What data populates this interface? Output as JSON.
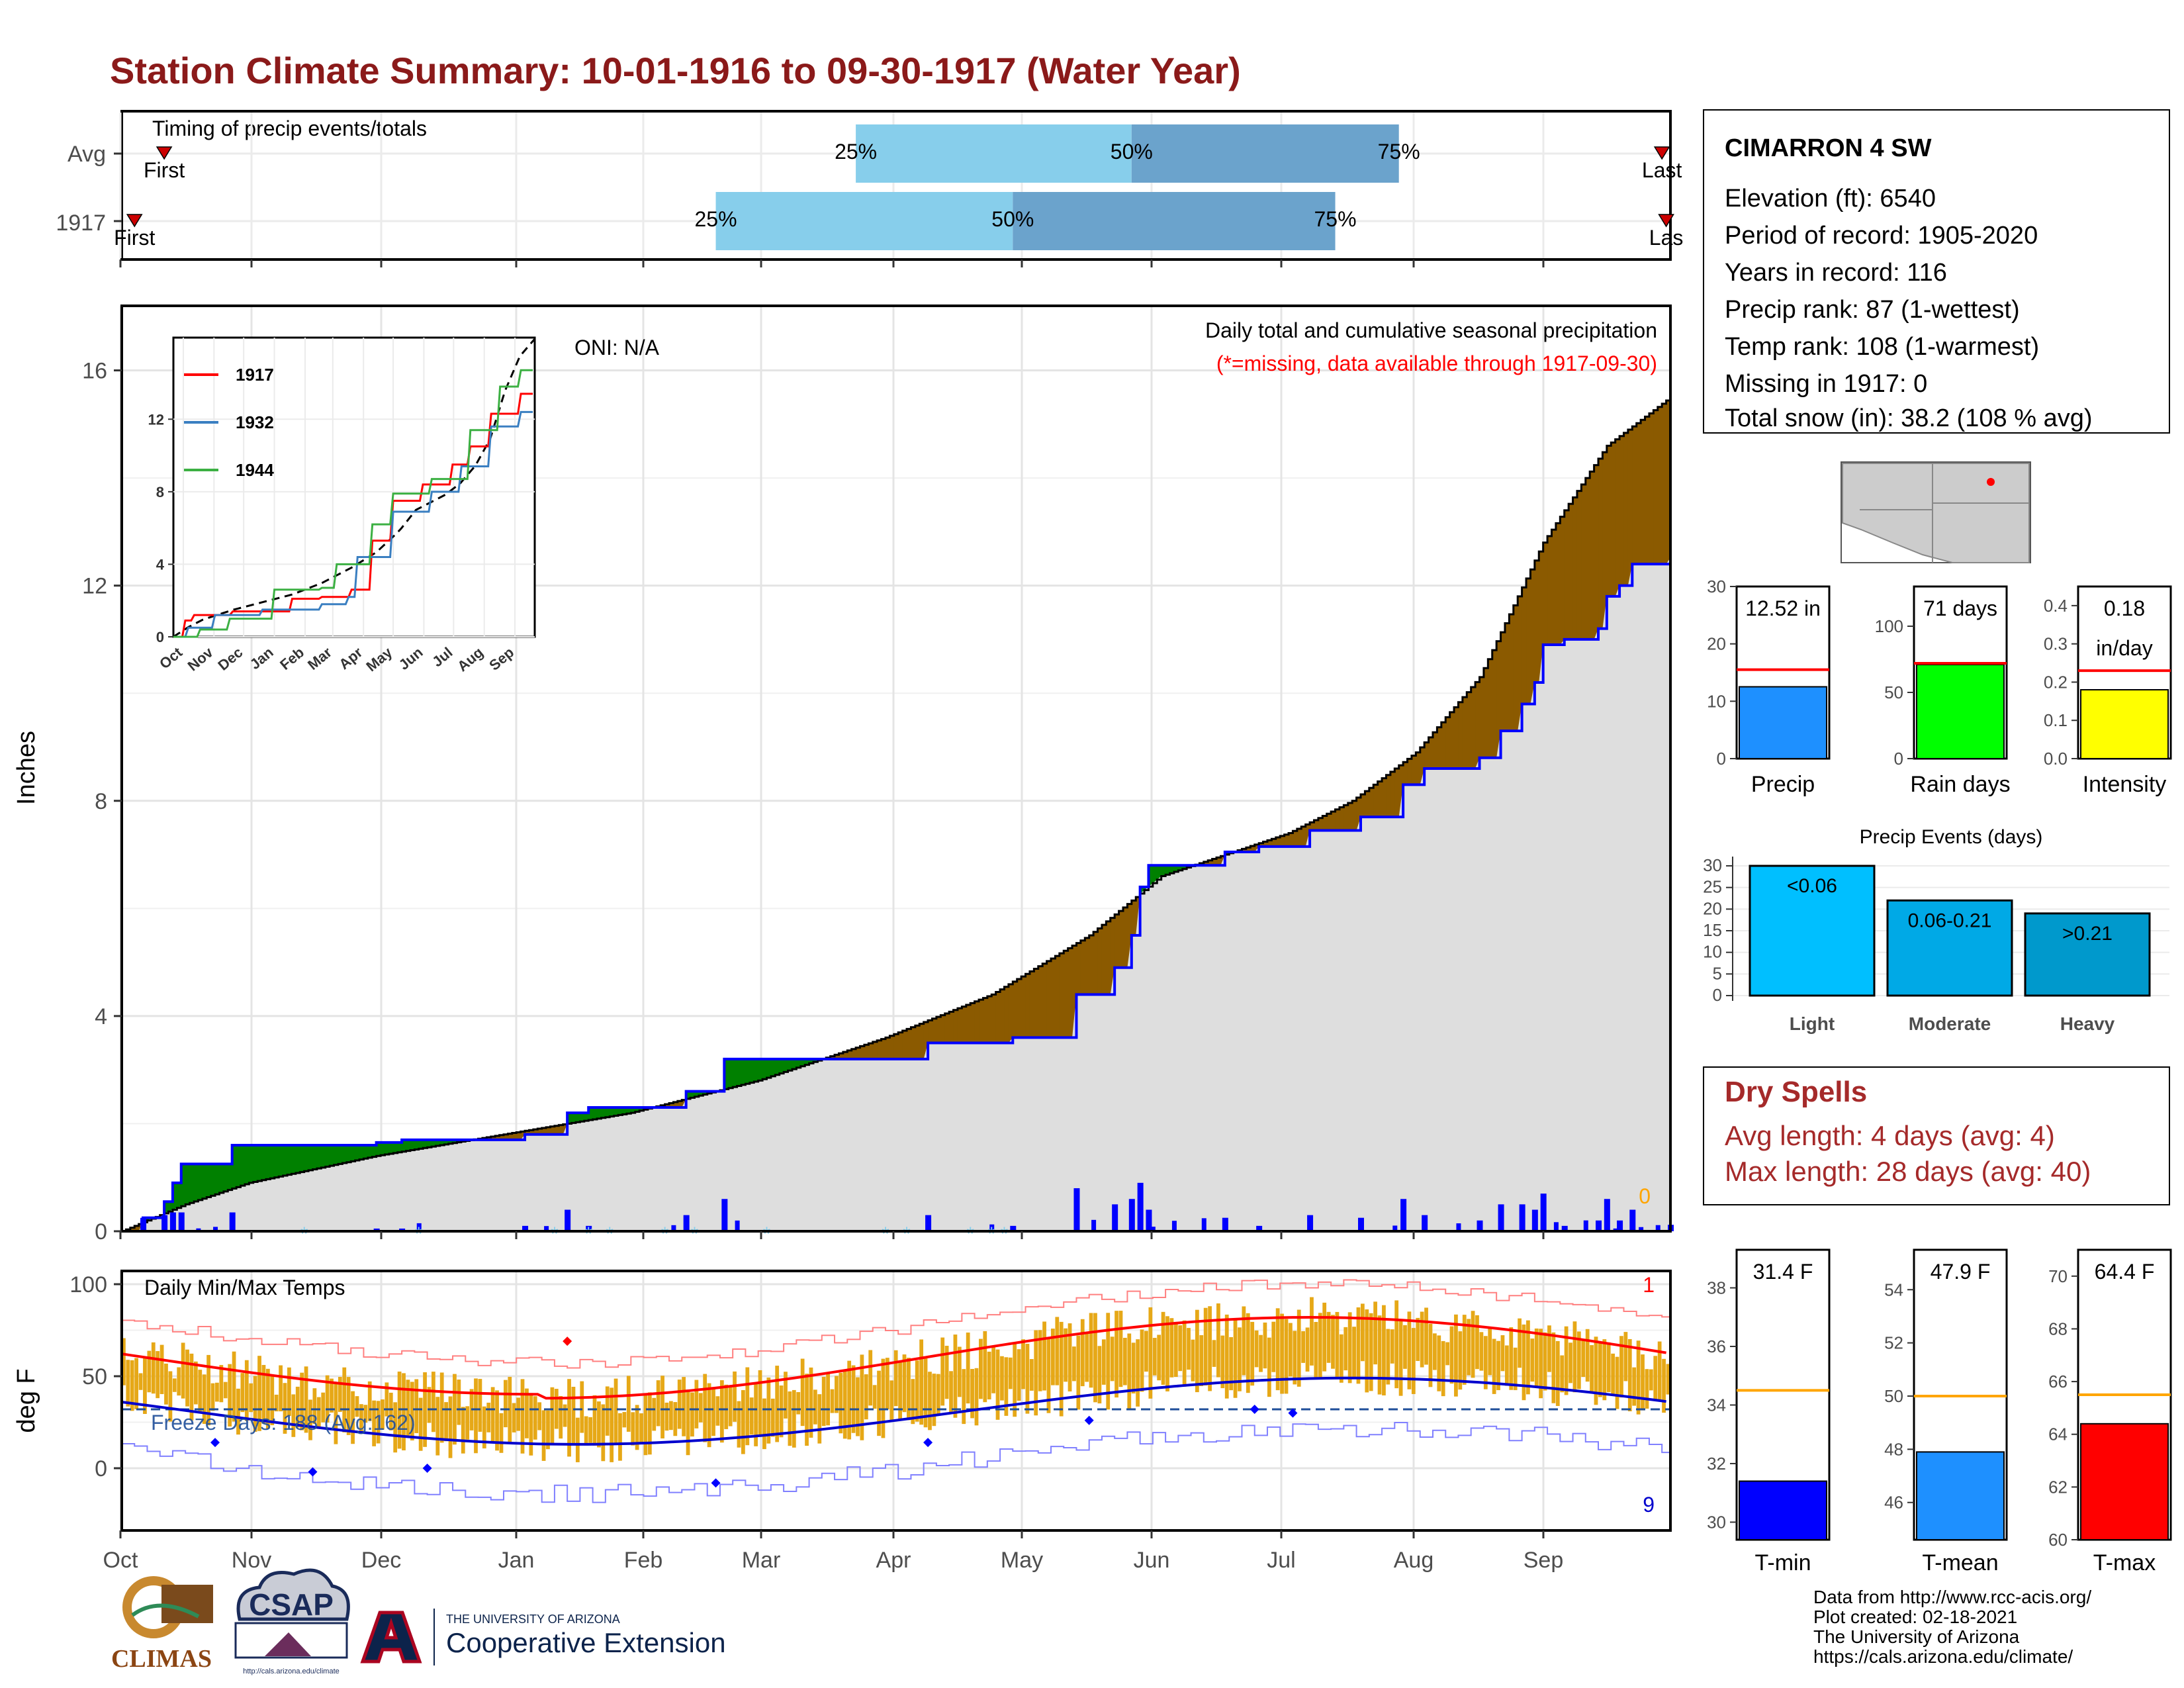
{
  "title": "Station Climate Summary: 10-01-1916 to 09-30-1917 (Water Year)",
  "colors": {
    "title": "#8b1a1a",
    "current": "#000000",
    "avg_line": "#0000ff",
    "surplus": "#008000",
    "deficit": "#8b5a00",
    "fill_avg": "#dedede",
    "daily_bar": "#0000ff",
    "q1": "#87ceeb",
    "q2": "#6ba3cc",
    "temp_bar": "#e6a817",
    "tmax_avg": "#ff0000",
    "tmin_avg": "#0000cd",
    "dry_spells": "#a52a2a"
  },
  "timing": {
    "label": "Timing of precip events/totals",
    "rows": [
      {
        "name": "Avg",
        "first_label": "First",
        "last_label": "Last",
        "first_day": 10,
        "last_day": 363,
        "q25": 173,
        "q50": 238,
        "q75": 301
      },
      {
        "name": "1917",
        "first_label": "First",
        "last_label": "Las",
        "first_day": 3,
        "last_day": 364,
        "q25": 140,
        "q50": 210,
        "q75": 286
      }
    ],
    "pct_labels": [
      "25%",
      "50%",
      "75%"
    ]
  },
  "precip_panel": {
    "y_label": "Inches",
    "y_ticks": [
      "0",
      "4",
      "8",
      "12",
      "16"
    ],
    "oni": "ONI: N/A",
    "desc": "Daily total and cumulative seasonal precipitation",
    "missing_note": "(*=missing, data available through 1917-09-30)",
    "missing_count": "0"
  },
  "chart_data": {
    "type": "area",
    "title": "Daily total and cumulative seasonal precipitation",
    "ylabel": "Inches",
    "ylim": [
      0,
      17.2
    ],
    "x_unit": "day of water year",
    "months": [
      "Oct",
      "Nov",
      "Dec",
      "Jan",
      "Feb",
      "Mar",
      "Apr",
      "May",
      "Jun",
      "Jul",
      "Aug",
      "Sep"
    ],
    "series": [
      {
        "name": "1917",
        "points": [
          [
            0,
            0
          ],
          [
            5,
            0.25
          ],
          [
            10,
            0.55
          ],
          [
            12,
            0.9
          ],
          [
            14,
            1.25
          ],
          [
            24,
            1.25
          ],
          [
            26,
            1.6
          ],
          [
            60,
            1.65
          ],
          [
            66,
            1.7
          ],
          [
            95,
            1.8
          ],
          [
            105,
            2.2
          ],
          [
            110,
            2.3
          ],
          [
            130,
            2.3
          ],
          [
            133,
            2.6
          ],
          [
            140,
            2.6
          ],
          [
            142,
            3.2
          ],
          [
            165,
            3.2
          ],
          [
            190,
            3.5
          ],
          [
            210,
            3.6
          ],
          [
            225,
            4.4
          ],
          [
            232,
            4.4
          ],
          [
            234,
            4.9
          ],
          [
            238,
            5.5
          ],
          [
            240,
            6.4
          ],
          [
            242,
            6.8
          ],
          [
            250,
            6.8
          ],
          [
            255,
            6.8
          ],
          [
            260,
            7.05
          ],
          [
            268,
            7.15
          ],
          [
            280,
            7.45
          ],
          [
            290,
            7.45
          ],
          [
            292,
            7.7
          ],
          [
            300,
            7.7
          ],
          [
            302,
            8.3
          ],
          [
            307,
            8.6
          ],
          [
            320,
            8.8
          ],
          [
            325,
            9.3
          ],
          [
            330,
            9.8
          ],
          [
            333,
            10.2
          ],
          [
            335,
            10.9
          ],
          [
            340,
            11.0
          ],
          [
            348,
            11.2
          ],
          [
            350,
            11.8
          ],
          [
            353,
            12.0
          ],
          [
            356,
            12.4
          ],
          [
            365,
            12.52
          ]
        ]
      },
      {
        "name": "Avg",
        "points": [
          [
            0,
            0
          ],
          [
            15,
            0.5
          ],
          [
            30,
            0.9
          ],
          [
            60,
            1.4
          ],
          [
            90,
            1.8
          ],
          [
            120,
            2.2
          ],
          [
            150,
            2.8
          ],
          [
            180,
            3.6
          ],
          [
            205,
            4.4
          ],
          [
            228,
            5.5
          ],
          [
            245,
            6.6
          ],
          [
            260,
            7.0
          ],
          [
            275,
            7.4
          ],
          [
            290,
            8.0
          ],
          [
            305,
            8.9
          ],
          [
            320,
            10.3
          ],
          [
            335,
            12.8
          ],
          [
            350,
            14.6
          ],
          [
            365,
            15.5
          ]
        ]
      }
    ],
    "daily_max_label": "",
    "temps": {
      "label": "Daily Min/Max Temps",
      "freeze": "Freeze Days: 188 (Avg:162)",
      "y_label": "deg F",
      "y_ticks": [
        "0",
        "50",
        "100"
      ],
      "count_max": "1",
      "count_min": "9"
    }
  },
  "inset": {
    "series": [
      {
        "name": "1917",
        "color": "#ff0000"
      },
      {
        "name": "1932",
        "color": "#3a7fc1"
      },
      {
        "name": "1944",
        "color": "#3cb043"
      }
    ],
    "y_ticks": [
      "0",
      "4",
      "8",
      "12"
    ],
    "months": [
      "Oct",
      "Nov",
      "Dec",
      "Jan",
      "Feb",
      "Mar",
      "Apr",
      "May",
      "Jun",
      "Jul",
      "Aug",
      "Sep"
    ]
  },
  "station": {
    "name": "CIMARRON 4 SW",
    "lines": [
      "Elevation (ft): 6540",
      "Period of record: 1905-2020",
      "Years in record: 116",
      "Precip rank: 87 (1-wettest)",
      "Temp rank: 108 (1-warmest)",
      "Missing in 1917: 0",
      "Total snow (in): 38.2 (108 % avg)"
    ]
  },
  "mini_precip": [
    {
      "label": "Precip",
      "value": 12.52,
      "avg": 15.5,
      "max": 30,
      "ticks": [
        "0",
        "10",
        "20",
        "30"
      ],
      "display": "12.52 in",
      "display2": "",
      "color": "#1e90ff"
    },
    {
      "label": "Rain days",
      "value": 71,
      "avg": 72,
      "max": 130,
      "ticks": [
        "0",
        "50",
        "100"
      ],
      "display": "71 days",
      "display2": "",
      "color": "#00ff00"
    },
    {
      "label": "Intensity",
      "value": 0.18,
      "avg": 0.23,
      "max": 0.45,
      "ticks": [
        "0.0",
        "0.1",
        "0.2",
        "0.3",
        "0.4"
      ],
      "display": "0.18",
      "display2": "in/day",
      "color": "#ffff00"
    }
  ],
  "events": {
    "title": "Precip Events (days)",
    "ticks": [
      "0",
      "5",
      "10",
      "15",
      "20",
      "25",
      "30"
    ],
    "bars": [
      {
        "label": "Light",
        "value": 30,
        "text": "<0.06",
        "color": "#00bfff"
      },
      {
        "label": "Moderate",
        "value": 22,
        "text": "0.06-0.21",
        "color": "#00a9e6"
      },
      {
        "label": "Heavy",
        "value": 19,
        "text": ">0.21",
        "color": "#0099cc"
      }
    ]
  },
  "dry_spells": {
    "title": "Dry Spells",
    "avg": "Avg length: 4 days (avg: 4)",
    "max": "Max length: 28 days (avg: 40)"
  },
  "mini_temps": [
    {
      "label": "T-min",
      "value": 31.4,
      "avg": 34.5,
      "min": 29.4,
      "max": 39.3,
      "ticks": [
        "30",
        "32",
        "34",
        "36",
        "38"
      ],
      "tick_vals": [
        30,
        32,
        34,
        36,
        38
      ],
      "display": "31.4 F",
      "color": "#0000ff"
    },
    {
      "label": "T-mean",
      "value": 47.9,
      "avg": 50.0,
      "min": 44.6,
      "max": 55.5,
      "ticks": [
        "46",
        "48",
        "50",
        "52",
        "54"
      ],
      "tick_vals": [
        46,
        48,
        50,
        52,
        54
      ],
      "display": "47.9 F",
      "color": "#1e90ff"
    },
    {
      "label": "T-max",
      "value": 64.4,
      "avg": 65.5,
      "min": 60.0,
      "max": 71.0,
      "ticks": [
        "60",
        "62",
        "64",
        "66",
        "68",
        "70"
      ],
      "tick_vals": [
        60,
        62,
        64,
        66,
        68,
        70
      ],
      "display": "64.4 F",
      "color": "#ff0000"
    }
  ],
  "footer": {
    "lines": [
      "Data from http://www.rcc-acis.org/",
      "Plot created: 02-18-2021",
      "The University of Arizona",
      "https://cals.arizona.edu/climate/"
    ],
    "logo1": "CLIMAS",
    "logo2": "CSAP",
    "logo2_url": "http://cals.arizona.edu/climate",
    "logo3_top": "THE UNIVERSITY OF ARIZONA",
    "logo3_main": "Cooperative Extension"
  }
}
